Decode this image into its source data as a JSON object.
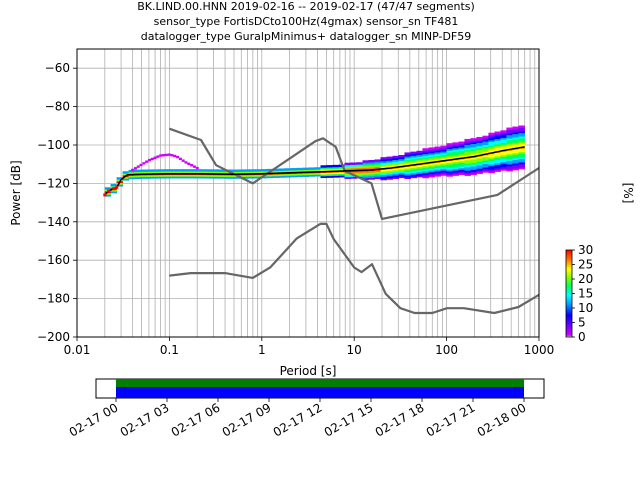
{
  "chart_data": {
    "type": "line",
    "title_lines": [
      "BK.LIND.00.HNN   2019-02-16 -- 2019-02-17  (47/47 segments)",
      "sensor_type FortisDCto100Hz(4gmax) sensor_sn TF481",
      "datalogger_type GuralpMinimus+ datalogger_sn MINP-DF59"
    ],
    "xlabel": "Period [s]",
    "ylabel": "Power [dB]",
    "xscale": "log",
    "xlim": [
      0.01,
      1000
    ],
    "ylim": [
      -200,
      -50
    ],
    "xtick_values": [
      0.01,
      0.1,
      1,
      10,
      100,
      1000
    ],
    "xtick_labels": [
      "0.01",
      "0.1",
      "1",
      "10",
      "100",
      "1000"
    ],
    "ytick_values": [
      -200,
      -180,
      -160,
      -140,
      -120,
      -100,
      -80,
      -60
    ],
    "ytick_labels": [
      "−200",
      "−180",
      "−160",
      "−140",
      "−120",
      "−100",
      "−80",
      "−60"
    ],
    "grid": true,
    "series": [
      {
        "name": "NHNM",
        "color": "#666666",
        "x": [
          0.1,
          0.22,
          0.32,
          0.8,
          3.8,
          4.6,
          6.3,
          7.9,
          15.4,
          20,
          354.8,
          1000
        ],
        "y": [
          -91.5,
          -97.4,
          -110.5,
          -120,
          -98,
          -96.5,
          -101,
          -113.5,
          -120,
          -138.5,
          -126,
          -112
        ]
      },
      {
        "name": "NLNM",
        "color": "#666666",
        "x": [
          0.1,
          0.17,
          0.4,
          0.8,
          1.24,
          2.4,
          4.3,
          5,
          6,
          10,
          12,
          15.6,
          21.9,
          31.6,
          45,
          70,
          101,
          154,
          328,
          600,
          1000
        ],
        "y": [
          -168,
          -166.7,
          -166.7,
          -169.2,
          -163.7,
          -148.6,
          -141.1,
          -141.1,
          -149,
          -163.8,
          -166.2,
          -162.1,
          -177.5,
          -185,
          -187.5,
          -187.5,
          -185,
          -185,
          -187.5,
          -184.4,
          -178
        ]
      },
      {
        "name": "mode",
        "color": "#000000",
        "x": [
          0.02,
          0.022,
          0.027,
          0.03,
          0.035,
          0.05,
          0.1,
          0.2,
          0.5,
          1,
          2,
          4,
          8,
          15,
          25,
          50,
          100,
          200,
          400,
          700
        ],
        "y": [
          -126,
          -124,
          -122,
          -118,
          -115.5,
          -115.2,
          -115,
          -115,
          -115.2,
          -115,
          -114.5,
          -114,
          -113.5,
          -113,
          -112,
          -110,
          -108,
          -106,
          -103,
          -101
        ]
      }
    ],
    "pdf_density": {
      "colormap": "pqlx",
      "colorbar_label": "[%]",
      "colorbar_range": [
        0,
        30
      ],
      "colorbar_ticks": [
        "0",
        "5",
        "10",
        "15",
        "20",
        "25",
        "30"
      ],
      "microseism_bump": {
        "x": [
          0.04,
          0.06,
          0.08,
          0.1,
          0.12,
          0.15,
          0.2
        ],
        "y": [
          -113,
          -108,
          -105.5,
          -105,
          -106,
          -109,
          -112
        ]
      }
    },
    "data_coverage": {
      "xtick_labels": [
        "02-17 00",
        "02-17 03",
        "02-17 06",
        "02-17 09",
        "02-17 12",
        "02-17 15",
        "02-17 18",
        "02-17 21",
        "02-18 00"
      ],
      "colors": {
        "available": "#0000ff",
        "gap_free": "#008000"
      }
    }
  }
}
